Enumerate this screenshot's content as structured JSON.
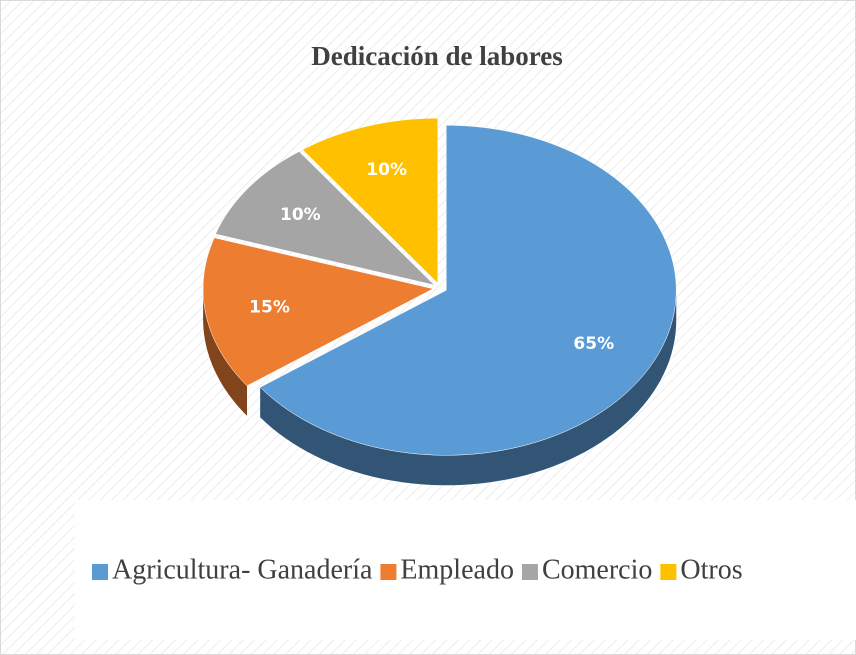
{
  "chart_data": {
    "type": "pie",
    "title": "Dedicación de labores",
    "categories": [
      "Agricultura- Ganadería",
      "Empleado",
      "Comercio",
      "Otros"
    ],
    "values": [
      65,
      15,
      10,
      10
    ],
    "value_labels": [
      "65%",
      "15%",
      "10%",
      "10%"
    ],
    "colors": [
      "#5b9bd5",
      "#ed7d31",
      "#a5a5a5",
      "#ffc000"
    ],
    "legend": "bottom"
  }
}
